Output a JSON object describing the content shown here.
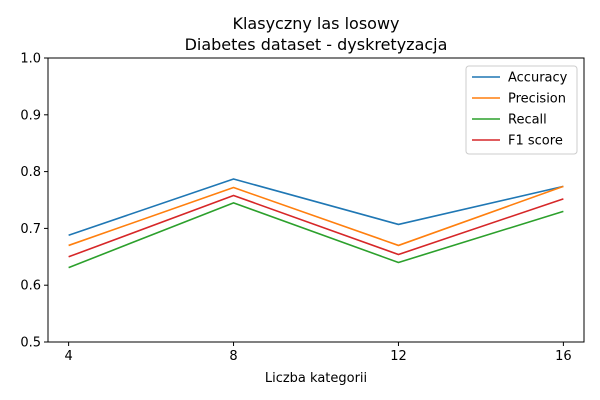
{
  "chart_data": {
    "type": "line",
    "title": "Klasyczny las losowy",
    "subtitle": "Diabetes dataset - dyskretyzacja",
    "xlabel": "Liczba kategorii",
    "ylabel": "",
    "x": [
      4,
      8,
      12,
      16
    ],
    "xticks": [
      "4",
      "8",
      "12",
      "16"
    ],
    "xlim": [
      3.5,
      16.5
    ],
    "ylim": [
      0.5,
      1.0
    ],
    "yticks": [
      "0.5",
      "0.6",
      "0.7",
      "0.8",
      "0.9",
      "1.0"
    ],
    "grid": false,
    "legend_position": "top-right",
    "series": [
      {
        "name": "Accuracy",
        "color": "#1f77b4",
        "values": [
          0.688,
          0.787,
          0.707,
          0.774
        ]
      },
      {
        "name": "Precision",
        "color": "#ff7f0e",
        "values": [
          0.67,
          0.772,
          0.67,
          0.774
        ]
      },
      {
        "name": "Recall",
        "color": "#2ca02c",
        "values": [
          0.631,
          0.745,
          0.64,
          0.73
        ]
      },
      {
        "name": "F1 score",
        "color": "#d62728",
        "values": [
          0.65,
          0.758,
          0.654,
          0.752
        ]
      }
    ]
  }
}
